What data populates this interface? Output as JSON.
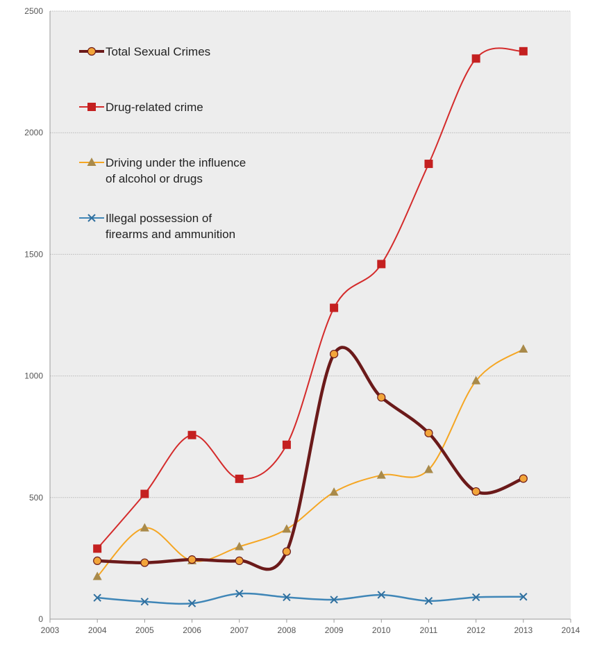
{
  "chart_data": {
    "type": "line",
    "title": "",
    "xlabel": "",
    "ylabel": "",
    "xlim": [
      2003,
      2014
    ],
    "ylim": [
      0,
      2500
    ],
    "x_ticks": [
      "2003",
      "2004",
      "2005",
      "2006",
      "2007",
      "2008",
      "2009",
      "2010",
      "2011",
      "2012",
      "2013",
      "2014"
    ],
    "y_ticks": [
      "0",
      "500",
      "1000",
      "1500",
      "2000",
      "2500"
    ],
    "grid": true,
    "smooth": true,
    "legend_position": "top-left",
    "x": [
      2004,
      2005,
      2006,
      2007,
      2008,
      2009,
      2010,
      2011,
      2012,
      2013
    ],
    "series": [
      {
        "name": "Total Sexual Crimes",
        "legend_lines": [
          "Total Sexual Crimes"
        ],
        "color": "#6b1a1a",
        "marker": "circle",
        "marker_color": "#f2a53a",
        "values": [
          240,
          232,
          245,
          240,
          278,
          1090,
          912,
          765,
          525,
          578
        ]
      },
      {
        "name": "Drug-related crime",
        "legend_lines": [
          "Drug-related crime"
        ],
        "color": "#d42b2b",
        "marker": "square",
        "marker_color": "#c42020",
        "values": [
          290,
          515,
          757,
          577,
          717,
          1280,
          1460,
          1872,
          2305,
          2335
        ]
      },
      {
        "name": "Driving under the influence of alcohol or drugs",
        "legend_lines": [
          "Driving under the influence",
          "of alcohol or drugs"
        ],
        "color": "#f5a623",
        "marker": "triangle",
        "marker_color": "#a98a4a",
        "values": [
          175,
          375,
          240,
          298,
          370,
          522,
          592,
          615,
          980,
          1110
        ]
      },
      {
        "name": "Illegal possession of firearms and ammunition",
        "legend_lines": [
          "Illegal possession of",
          "firearms and ammunition"
        ],
        "color": "#3f86b7",
        "marker": "x",
        "marker_color": "#2f6f9e",
        "values": [
          88,
          72,
          65,
          105,
          90,
          80,
          100,
          75,
          90,
          92
        ]
      }
    ]
  }
}
